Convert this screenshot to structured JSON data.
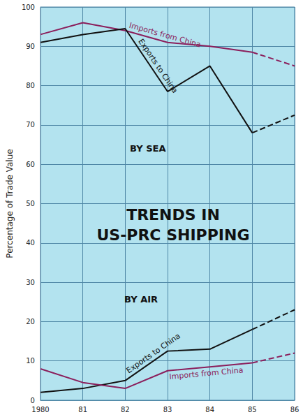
{
  "chart_data": {
    "type": "line",
    "title": "TRENDS IN US-PRC SHIPPING",
    "ylabel": "Percentage of Trade Value",
    "annotations": [
      "BY SEA",
      "BY AIR"
    ],
    "categories": [
      "1980",
      "81",
      "82",
      "83",
      "84",
      "85",
      "86"
    ],
    "projected_from": "85",
    "series": [
      {
        "name": "Imports from China",
        "color": "#8b1f5c",
        "values": [
          93,
          96,
          94,
          91,
          90,
          88.5,
          85
        ]
      },
      {
        "name": "Exports to China",
        "color": "#111111",
        "values": [
          91,
          93,
          94.5,
          78.5,
          85,
          68,
          72.5
        ]
      },
      {
        "name": "Exports to China",
        "color": "#111111",
        "values": [
          2,
          3,
          5,
          12.5,
          13,
          18,
          23
        ]
      },
      {
        "name": "Imports from China",
        "color": "#8b1f5c",
        "values": [
          8,
          4.5,
          3,
          7.5,
          8.5,
          9.5,
          12
        ]
      }
    ],
    "ylim": [
      0,
      100
    ],
    "yticks": [
      0,
      10,
      20,
      30,
      40,
      50,
      60,
      70,
      80,
      90,
      100
    ],
    "grid": true
  }
}
